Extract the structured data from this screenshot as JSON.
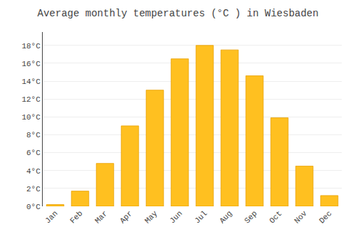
{
  "chart_data": {
    "type": "bar",
    "title": "Average monthly temperatures (°C ) in Wiesbaden",
    "categories": [
      "Jan",
      "Feb",
      "Mar",
      "Apr",
      "May",
      "Jun",
      "Jul",
      "Aug",
      "Sep",
      "Oct",
      "Nov",
      "Dec"
    ],
    "values": [
      0.2,
      1.7,
      4.8,
      9.0,
      13.0,
      16.5,
      18.0,
      17.5,
      14.6,
      9.9,
      4.5,
      1.2
    ],
    "color": "#FFC020",
    "ylim": [
      0,
      19.5
    ],
    "yticks": [
      {
        "value": 0,
        "label": "0°C"
      },
      {
        "value": 2,
        "label": "2°C"
      },
      {
        "value": 4,
        "label": "4°C"
      },
      {
        "value": 6,
        "label": "6°C"
      },
      {
        "value": 8,
        "label": "8°C"
      },
      {
        "value": 10,
        "label": "10°C"
      },
      {
        "value": 12,
        "label": "12°C"
      },
      {
        "value": 14,
        "label": "14°C"
      },
      {
        "value": 16,
        "label": "16°C"
      },
      {
        "value": 18,
        "label": "18°C"
      }
    ],
    "grid": true
  }
}
